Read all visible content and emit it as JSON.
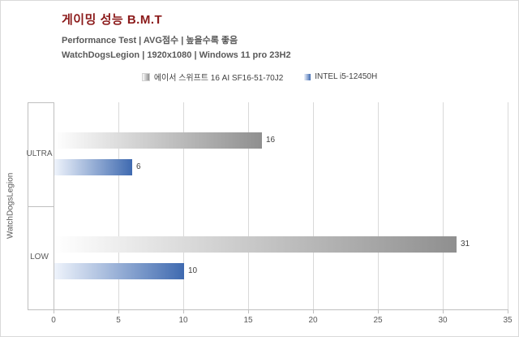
{
  "header": {
    "title": "게이밍 성능 B.M.T",
    "subtitle1": "Performance Test | AVG점수 | 높을수록 좋음",
    "subtitle2": "WatchDogsLegion | 1920x1080 | Windows 11 pro 23H2"
  },
  "colors": {
    "title": "#8b1a1a",
    "text": "#595959",
    "grid": "#d9d9d9",
    "axis": "#bfbfbf",
    "value_label": "#404040",
    "gray_series_end": "#8f8f8f",
    "blue_series_end": "#3f6ab0"
  },
  "chart_data": {
    "type": "bar",
    "orientation": "horizontal",
    "title": "게이밍 성능 B.M.T",
    "subtitle": "Performance Test | AVG점수 | 높을수록 좋음 — WatchDogsLegion | 1920x1080 | Windows 11 pro 23H2",
    "group_label": "WatchDogsLegion",
    "categories": [
      "ULTRA",
      "LOW"
    ],
    "series": [
      {
        "name": "에이서 스위프트 16 AI SF16-51-70J2",
        "values": [
          16,
          31
        ],
        "gradient": [
          "#ffffff",
          "#8f8f8f"
        ]
      },
      {
        "name": "INTEL i5-12450H",
        "values": [
          6,
          10
        ],
        "gradient": [
          "#eef3fb",
          "#3f6ab0"
        ]
      }
    ],
    "xlim": [
      0,
      35
    ],
    "xticks": [
      0,
      5,
      10,
      15,
      20,
      25,
      30,
      35
    ],
    "grid": true,
    "legend_position": "top"
  }
}
